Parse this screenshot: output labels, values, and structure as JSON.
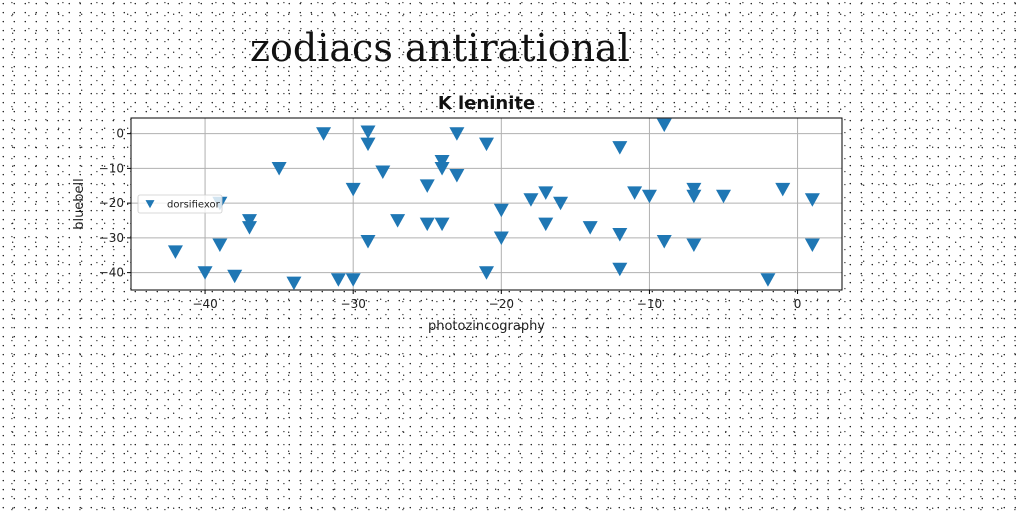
{
  "page": {
    "title": "zodiacs antirational"
  },
  "chart_data": {
    "type": "scatter",
    "title": "K leninite",
    "xlabel": "photozincography",
    "ylabel": "bluebell",
    "xlim": [
      -45,
      3
    ],
    "ylim": [
      -45,
      4.5
    ],
    "xticks": [
      -40,
      -30,
      -20,
      -10,
      0
    ],
    "yticks": [
      0,
      -10,
      -20,
      -30,
      -40
    ],
    "grid": true,
    "legend_location": "center-left",
    "marker": "triangle-down",
    "color": "#1f77b4",
    "series": [
      {
        "name": "dorsifiexor",
        "x": [
          -32,
          -29,
          -29,
          -23,
          -9,
          -21,
          -12,
          -35,
          -28,
          -24,
          -24,
          -23,
          -30,
          -25,
          -11,
          -10,
          -7,
          -7,
          -5,
          -1,
          1,
          -18,
          -17,
          -16,
          -20,
          -39,
          -37,
          -37,
          -27,
          -25,
          -24,
          -17,
          -14,
          -12,
          -39,
          -29,
          -20,
          -9,
          -7,
          1,
          -42,
          -40,
          -38,
          -34,
          -31,
          -30,
          -21,
          -12,
          -2
        ],
        "y": [
          0,
          0.5,
          -3,
          0,
          2.5,
          -3,
          -4,
          -10,
          -11,
          -8,
          -10,
          -12,
          -16,
          -15,
          -17,
          -18,
          -16,
          -18,
          -18,
          -16,
          -19,
          -19,
          -17,
          -20,
          -22,
          -20,
          -25,
          -27,
          -25,
          -26,
          -26,
          -26,
          -27,
          -29,
          -32,
          -31,
          -30,
          -31,
          -32,
          -32,
          -34,
          -40,
          -41,
          -43,
          -42,
          -42,
          -40,
          -39,
          -42
        ]
      }
    ]
  }
}
